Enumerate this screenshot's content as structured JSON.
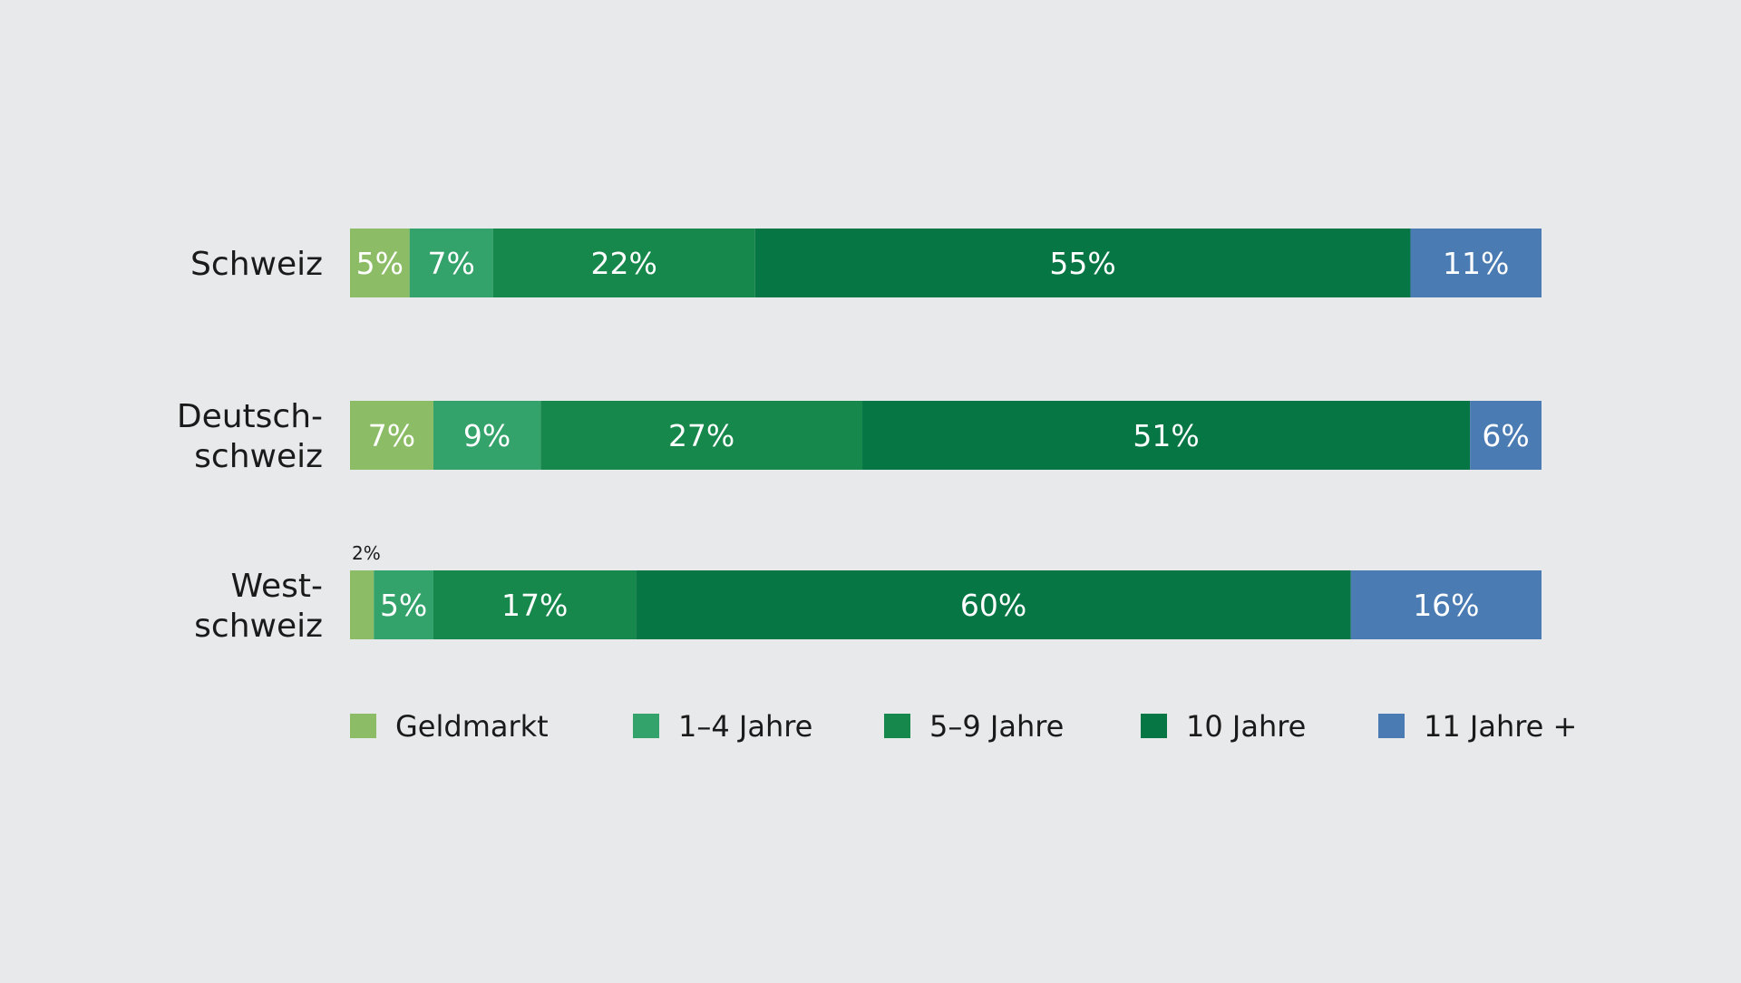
{
  "chart_data": {
    "type": "bar",
    "orientation": "horizontal",
    "stacked": true,
    "percent": true,
    "title": "",
    "xlabel": "",
    "ylabel": "",
    "xlim": [
      0,
      100
    ],
    "grid": false,
    "legend_position": "bottom",
    "categories": [
      "Schweiz",
      "Deutschschweiz",
      "Westschweiz"
    ],
    "category_label_lines": [
      [
        "Schweiz"
      ],
      [
        "Deutsch-",
        "schweiz"
      ],
      [
        "West-",
        "schweiz"
      ]
    ],
    "series": [
      {
        "name": "Geldmarkt",
        "color": "#8cbd66",
        "values": [
          5,
          7,
          2
        ],
        "labels": [
          "5%",
          "7%",
          "2%"
        ]
      },
      {
        "name": "1–4 Jahre",
        "color": "#34a26b",
        "values": [
          7,
          9,
          5
        ],
        "labels": [
          "7%",
          "9%",
          "5%"
        ]
      },
      {
        "name": "5–9 Jahre",
        "color": "#17884b",
        "values": [
          22,
          27,
          17
        ],
        "labels": [
          "22%",
          "27%",
          "17%"
        ]
      },
      {
        "name": "10 Jahre",
        "color": "#067645",
        "values": [
          55,
          51,
          60
        ],
        "labels": [
          "55%",
          "51%",
          "60%"
        ]
      },
      {
        "name": "11 Jahre +",
        "color": "#4a7bb2",
        "values": [
          11,
          6,
          16
        ],
        "labels": [
          "11%",
          "6%",
          "16%"
        ]
      }
    ]
  }
}
